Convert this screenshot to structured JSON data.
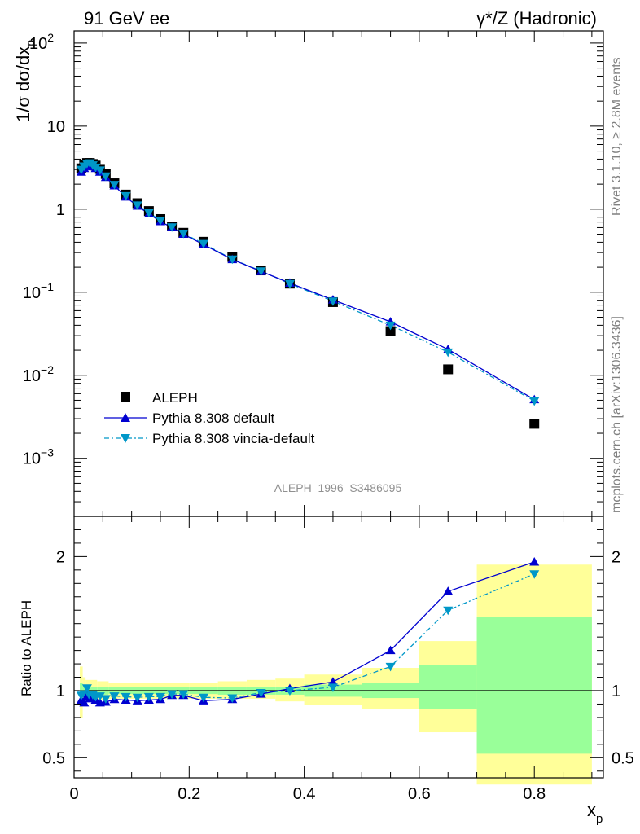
{
  "header": {
    "left": "91 GeV ee",
    "right": "γ*/Z (Hadronic)"
  },
  "side_labels": {
    "rivet": "Rivet 3.1.10, ≥ 2.8M events",
    "mcplots": "mcplots.cern.ch [arXiv:1306.3436]"
  },
  "watermark": "ALEPH_1996_S3486095",
  "colors": {
    "data": "#000000",
    "pythia_default": "#0000d0",
    "pythia_vincia": "#0097c8",
    "band_outer": "#ffff99",
    "band_inner": "#99ff99"
  },
  "chart_data": [
    {
      "type": "scatter",
      "panel": "main",
      "ylabel": "1/σ dσ/dx_p",
      "yscale": "log",
      "ylim": [
        0.0002,
        140
      ],
      "xlim": [
        0,
        0.92
      ],
      "yticks": [
        {
          "base": "10",
          "exp": "2"
        },
        {
          "base": "10",
          "exp": ""
        },
        {
          "base": "1",
          "exp": ""
        },
        {
          "base": "10",
          "exp": "−1"
        },
        {
          "base": "10",
          "exp": "−2"
        },
        {
          "base": "10",
          "exp": "−3"
        }
      ],
      "legend_position": "bottom-left",
      "x": [
        0.0125,
        0.0175,
        0.0225,
        0.0275,
        0.0325,
        0.0375,
        0.045,
        0.055,
        0.07,
        0.09,
        0.11,
        0.13,
        0.15,
        0.17,
        0.19,
        0.225,
        0.275,
        0.325,
        0.375,
        0.45,
        0.55,
        0.65,
        0.8
      ],
      "series": [
        {
          "name": "ALEPH",
          "marker": "square",
          "values": [
            3.1,
            3.4,
            3.6,
            3.6,
            3.5,
            3.35,
            3.05,
            2.65,
            2.05,
            1.5,
            1.18,
            0.95,
            0.76,
            0.62,
            0.52,
            0.405,
            0.265,
            0.183,
            0.127,
            0.076,
            0.034,
            0.0118,
            0.0026
          ]
        },
        {
          "name": "Pythia 8.308 default",
          "marker": "triangle-up",
          "values": [
            2.8,
            3.1,
            3.3,
            3.35,
            3.25,
            3.1,
            2.8,
            2.42,
            1.92,
            1.4,
            1.09,
            0.88,
            0.71,
            0.6,
            0.5,
            0.375,
            0.248,
            0.178,
            0.129,
            0.081,
            0.044,
            0.0205,
            0.0051
          ]
        },
        {
          "name": "Pythia 8.308 vincia-default",
          "marker": "triangle-down",
          "values": [
            3.0,
            3.3,
            3.55,
            3.6,
            3.4,
            3.2,
            2.95,
            2.5,
            1.98,
            1.45,
            1.12,
            0.91,
            0.73,
            0.61,
            0.51,
            0.385,
            0.25,
            0.18,
            0.127,
            0.078,
            0.04,
            0.019,
            0.0049
          ]
        }
      ]
    },
    {
      "type": "line",
      "panel": "ratio",
      "ylabel": "Ratio to ALEPH",
      "xlabel": "x_p",
      "ylim": [
        0.35,
        2.3
      ],
      "xlim": [
        0,
        0.92
      ],
      "yticks": [
        "0.5",
        "1",
        "2"
      ],
      "xticks": [
        "0",
        "0.2",
        "0.4",
        "0.6",
        "0.8"
      ],
      "x": [
        0.0125,
        0.0175,
        0.0225,
        0.0275,
        0.0325,
        0.0375,
        0.045,
        0.055,
        0.07,
        0.09,
        0.11,
        0.13,
        0.15,
        0.17,
        0.19,
        0.225,
        0.275,
        0.325,
        0.375,
        0.45,
        0.55,
        0.65,
        0.8
      ],
      "series": [
        {
          "name": "Pythia 8.308 default",
          "values": [
            0.93,
            0.91,
            0.96,
            0.94,
            0.95,
            0.93,
            0.91,
            0.915,
            0.935,
            0.93,
            0.925,
            0.93,
            0.935,
            0.965,
            0.965,
            0.925,
            0.935,
            0.975,
            1.015,
            1.065,
            1.3,
            1.74,
            1.96
          ]
        },
        {
          "name": "Pythia 8.308 vincia-default",
          "values": [
            0.965,
            0.975,
            1.02,
            0.96,
            0.97,
            0.955,
            0.96,
            0.94,
            0.96,
            0.955,
            0.95,
            0.955,
            0.955,
            0.975,
            0.975,
            0.95,
            0.945,
            0.985,
            1.0,
            1.025,
            1.18,
            1.6,
            1.87
          ]
        }
      ],
      "bands": [
        {
          "x0": 0.01,
          "x1": 0.015,
          "outer": [
            0.8,
            1.18
          ],
          "inner": [
            0.93,
            1.06
          ]
        },
        {
          "x0": 0.015,
          "x1": 0.02,
          "outer": [
            0.9,
            1.1
          ],
          "inner": [
            0.96,
            1.04
          ]
        },
        {
          "x0": 0.02,
          "x1": 0.04,
          "outer": [
            0.92,
            1.08
          ],
          "inner": [
            0.97,
            1.03
          ]
        },
        {
          "x0": 0.04,
          "x1": 0.06,
          "outer": [
            0.93,
            1.07
          ],
          "inner": [
            0.97,
            1.03
          ]
        },
        {
          "x0": 0.06,
          "x1": 0.2,
          "outer": [
            0.94,
            1.06
          ],
          "inner": [
            0.975,
            1.025
          ]
        },
        {
          "x0": 0.2,
          "x1": 0.25,
          "outer": [
            0.94,
            1.06
          ],
          "inner": [
            0.975,
            1.025
          ]
        },
        {
          "x0": 0.25,
          "x1": 0.3,
          "outer": [
            0.94,
            1.07
          ],
          "inner": [
            0.97,
            1.03
          ]
        },
        {
          "x0": 0.3,
          "x1": 0.35,
          "outer": [
            0.94,
            1.08
          ],
          "inner": [
            0.97,
            1.03
          ]
        },
        {
          "x0": 0.35,
          "x1": 0.4,
          "outer": [
            0.92,
            1.09
          ],
          "inner": [
            0.97,
            1.03
          ]
        },
        {
          "x0": 0.4,
          "x1": 0.5,
          "outer": [
            0.895,
            1.12
          ],
          "inner": [
            0.955,
            1.045
          ]
        },
        {
          "x0": 0.5,
          "x1": 0.6,
          "outer": [
            0.865,
            1.17
          ],
          "inner": [
            0.945,
            1.06
          ]
        },
        {
          "x0": 0.6,
          "x1": 0.7,
          "outer": [
            0.69,
            1.37
          ],
          "inner": [
            0.865,
            1.19
          ]
        },
        {
          "x0": 0.7,
          "x1": 0.9,
          "outer": [
            0.3,
            1.94
          ],
          "inner": [
            0.53,
            1.55
          ]
        }
      ]
    }
  ]
}
